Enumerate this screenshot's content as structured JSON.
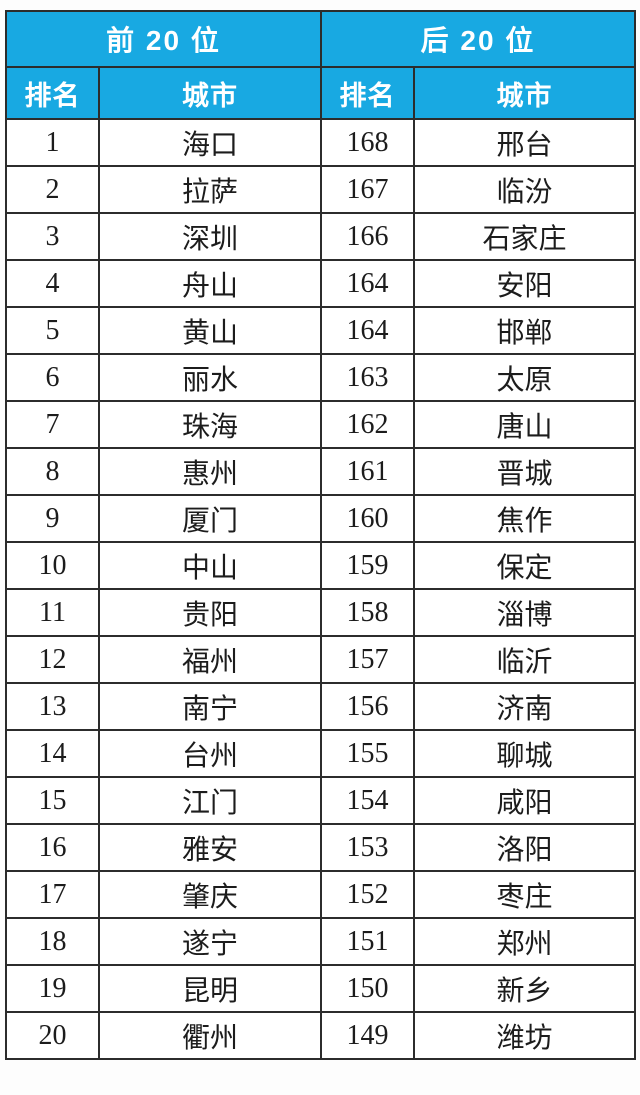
{
  "colors": {
    "header_background": "#18a9e2",
    "header_text": "#ffffff",
    "border": "#2c2c2c",
    "cell_text": "#1c1c1c",
    "page_background": "#ffffff"
  },
  "chart_data": {
    "type": "table",
    "title": "",
    "group_headers": [
      "前 20 位",
      "后 20 位"
    ],
    "columns": [
      "排名",
      "城市",
      "排名",
      "城市"
    ],
    "rows": [
      [
        "1",
        "海口",
        "168",
        "邢台"
      ],
      [
        "2",
        "拉萨",
        "167",
        "临汾"
      ],
      [
        "3",
        "深圳",
        "166",
        "石家庄"
      ],
      [
        "4",
        "舟山",
        "164",
        "安阳"
      ],
      [
        "5",
        "黄山",
        "164",
        "邯郸"
      ],
      [
        "6",
        "丽水",
        "163",
        "太原"
      ],
      [
        "7",
        "珠海",
        "162",
        "唐山"
      ],
      [
        "8",
        "惠州",
        "161",
        "晋城"
      ],
      [
        "9",
        "厦门",
        "160",
        "焦作"
      ],
      [
        "10",
        "中山",
        "159",
        "保定"
      ],
      [
        "11",
        "贵阳",
        "158",
        "淄博"
      ],
      [
        "12",
        "福州",
        "157",
        "临沂"
      ],
      [
        "13",
        "南宁",
        "156",
        "济南"
      ],
      [
        "14",
        "台州",
        "155",
        "聊城"
      ],
      [
        "15",
        "江门",
        "154",
        "咸阳"
      ],
      [
        "16",
        "雅安",
        "153",
        "洛阳"
      ],
      [
        "17",
        "肇庆",
        "152",
        "枣庄"
      ],
      [
        "18",
        "遂宁",
        "151",
        "郑州"
      ],
      [
        "19",
        "昆明",
        "150",
        "新乡"
      ],
      [
        "20",
        "衢州",
        "149",
        "潍坊"
      ]
    ]
  }
}
